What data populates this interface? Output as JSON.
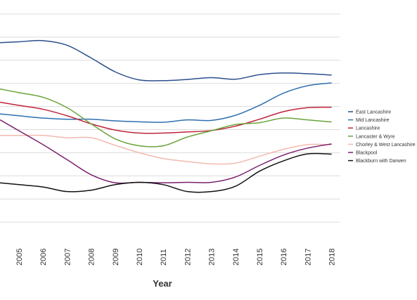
{
  "chart_data": {
    "type": "line",
    "title": "",
    "xlabel": "Year",
    "ylabel": "",
    "x": [
      "2005",
      "2006",
      "2007",
      "2008",
      "2009",
      "2010",
      "2011",
      "2012",
      "2013",
      "2014",
      "2015",
      "2016",
      "2017",
      "2018"
    ],
    "x_first_partial": 2004,
    "ylim": [
      0,
      10
    ],
    "grid": true,
    "legend": "right",
    "series": [
      {
        "name": "East Lancashire",
        "color": "#2b4f8c",
        "values": [
          8.8,
          8.85,
          8.65,
          8.1,
          7.5,
          7.15,
          7.12,
          7.17,
          7.25,
          7.18,
          7.38,
          7.45,
          7.42,
          7.36
        ]
      },
      {
        "name": "Mid Lancashire",
        "color": "#2e6fb0",
        "values": [
          5.6,
          5.5,
          5.45,
          5.45,
          5.38,
          5.34,
          5.32,
          5.42,
          5.4,
          5.62,
          6.05,
          6.58,
          6.9,
          7.02
        ]
      },
      {
        "name": "Lancashire",
        "color": "#c0243b",
        "values": [
          6.05,
          5.88,
          5.6,
          5.25,
          4.98,
          4.85,
          4.85,
          4.9,
          4.96,
          5.15,
          5.45,
          5.78,
          5.95,
          5.97
        ]
      },
      {
        "name": "Lancaster & Wyre",
        "color": "#6aa33a",
        "values": [
          6.6,
          6.4,
          5.95,
          5.25,
          4.6,
          4.3,
          4.3,
          4.68,
          4.95,
          5.22,
          5.3,
          5.5,
          5.42,
          5.33
        ]
      },
      {
        "name": "Chorley & West Lancashire",
        "color": "#f3b9ae",
        "values": [
          4.75,
          4.75,
          4.65,
          4.65,
          4.32,
          4.0,
          3.75,
          3.62,
          3.52,
          3.55,
          3.85,
          4.15,
          4.35,
          4.35
        ]
      },
      {
        "name": "Blackpool",
        "color": "#7a1f6e",
        "values": [
          4.95,
          4.35,
          3.7,
          3.05,
          2.7,
          2.72,
          2.7,
          2.72,
          2.72,
          2.95,
          3.45,
          3.9,
          4.2,
          4.38
        ]
      },
      {
        "name": "Blackburn with Darwen",
        "color": "#111111",
        "values": [
          2.62,
          2.52,
          2.32,
          2.38,
          2.62,
          2.72,
          2.62,
          2.32,
          2.32,
          2.55,
          3.2,
          3.65,
          3.95,
          3.94
        ]
      }
    ]
  }
}
